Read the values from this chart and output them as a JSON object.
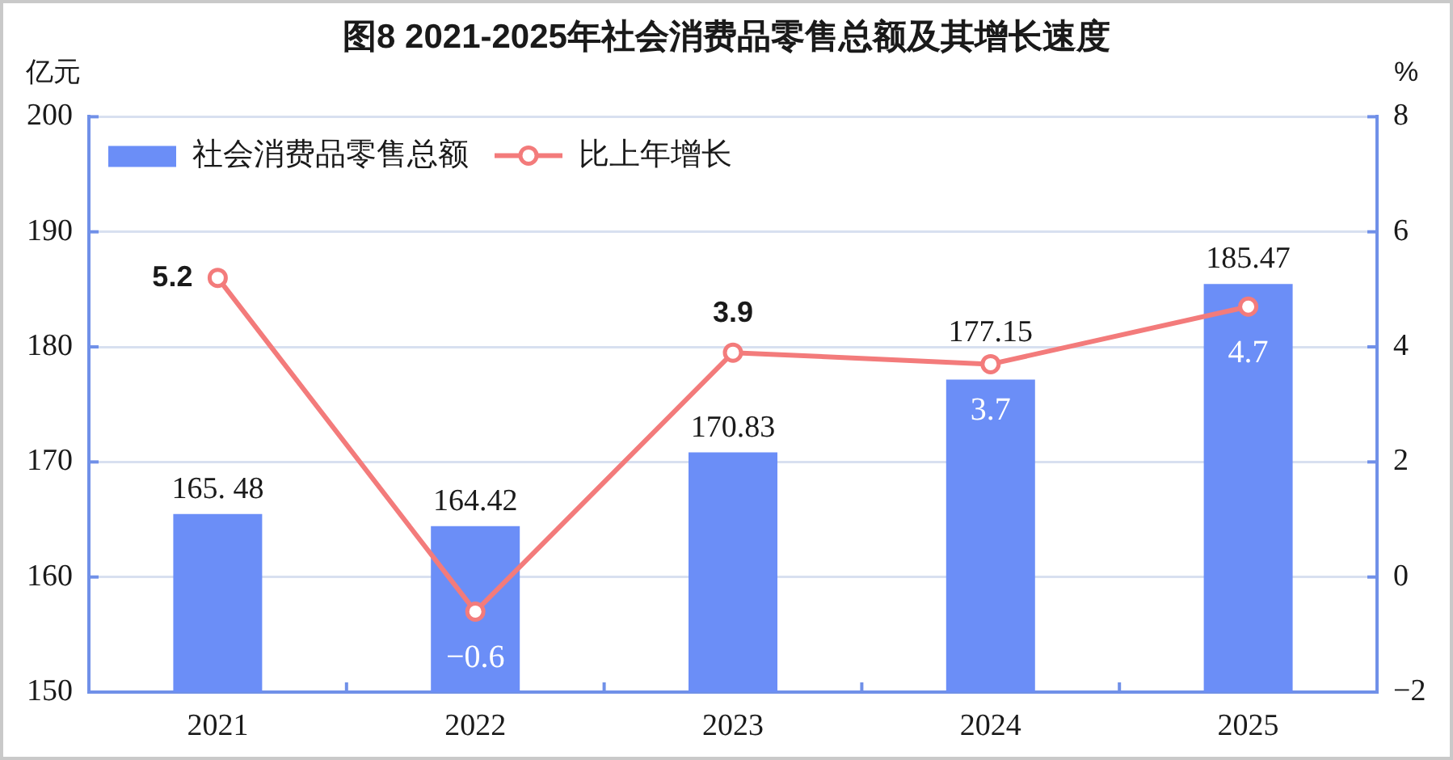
{
  "chart_data": {
    "type": "bar",
    "title": "图8 2021-2025年社会消费品零售总额及其增长速度",
    "ylabel": "亿元",
    "y2label": "%",
    "categories": [
      "2021",
      "2022",
      "2023",
      "2024",
      "2025"
    ],
    "series": [
      {
        "name": "社会消费品零售总额",
        "color": "#6b8ef7",
        "values": [
          165.48,
          164.42,
          170.83,
          177.15,
          185.47
        ],
        "value_labels": [
          "165. 48",
          "164.42",
          "170.83",
          "177.15",
          "185.47"
        ]
      },
      {
        "name": "比上年增长",
        "type": "line",
        "axis": "y2",
        "color": "#f37b7b",
        "values": [
          5.2,
          -0.6,
          3.9,
          3.7,
          4.7
        ],
        "value_labels": [
          "5.2",
          "−0.6",
          "3.9",
          "3.7",
          "4.7"
        ]
      }
    ],
    "ylim": [
      150,
      200
    ],
    "yticks": [
      150,
      160,
      170,
      180,
      190,
      200
    ],
    "y2lim": [
      -2,
      8
    ],
    "y2ticks": [
      {
        "value": -2,
        "label": "−2"
      },
      0,
      2,
      4,
      6,
      8
    ],
    "grid": "y",
    "legend": "top left",
    "marker": "circle"
  }
}
